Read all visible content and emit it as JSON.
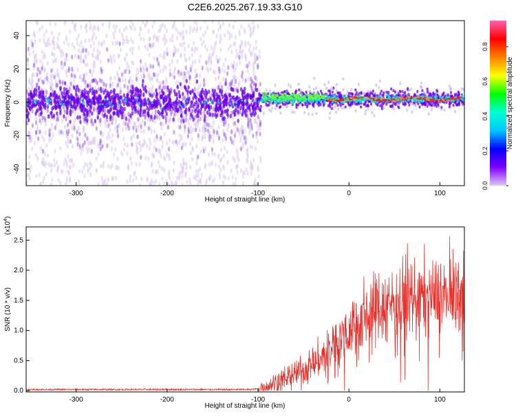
{
  "title": "C2E6.2025.267.19.33.G10",
  "colors": {
    "snr_line": "#e8302a",
    "spectro_low": "#d8c8f0",
    "spectro_mid": "#6a00e8",
    "spectro_high": "#00e8d0",
    "spectro_peak": "#e82020",
    "axis": "#000000"
  },
  "chart_data": [
    {
      "type": "heatmap",
      "title": "C2E6.2025.267.19.33.G10",
      "xlabel": "Height of straight line (km)",
      "ylabel": "Frequency (Hz)",
      "xlim": [
        -355,
        127
      ],
      "ylim": [
        -50,
        49
      ],
      "x_ticks": [
        -300,
        -200,
        -100,
        0,
        100
      ],
      "y_ticks": [
        -40,
        -20,
        0,
        20,
        40
      ],
      "noise_region_x": [
        -355,
        -97
      ],
      "signal_region_x": [
        -97,
        127
      ],
      "signal_center_hz": 2,
      "colorbar": {
        "label": "Normalized spectral amplitude",
        "range": [
          0.0,
          0.95
        ],
        "ticks": [
          0.0,
          0.2,
          0.4,
          0.6,
          0.8
        ],
        "colormap": [
          "#ff60b0",
          "#ff0000",
          "#ff8000",
          "#ffff00",
          "#00ff00",
          "#00ffd0",
          "#00c8ff",
          "#0000ff",
          "#8000ff",
          "#e0c8f8"
        ]
      }
    },
    {
      "type": "line",
      "xlabel": "Height of straight line (km)",
      "ylabel": "SNR (10 * v/v)",
      "y_scale_label": "(x10",
      "y_scale_exp": "4",
      "y_scale_close": ")",
      "xlim": [
        -355,
        127
      ],
      "ylim": [
        -0.02,
        2.72
      ],
      "x_ticks": [
        -300,
        -200,
        -100,
        0,
        100
      ],
      "y_ticks": [
        0.0,
        0.5,
        1.0,
        1.5,
        2.0,
        2.5
      ],
      "series": [
        {
          "name": "SNR",
          "x": [
            -355,
            -300,
            -250,
            -200,
            -150,
            -110,
            -100,
            -90,
            -80,
            -70,
            -60,
            -50,
            -40,
            -30,
            -20,
            -10,
            0,
            10,
            20,
            30,
            40,
            50,
            60,
            70,
            80,
            90,
            100,
            110,
            120,
            127
          ],
          "values": [
            0.02,
            0.02,
            0.02,
            0.02,
            0.02,
            0.02,
            0.03,
            0.08,
            0.15,
            0.22,
            0.28,
            0.35,
            0.45,
            0.55,
            0.7,
            0.88,
            1.02,
            1.18,
            1.3,
            1.38,
            1.45,
            1.5,
            1.52,
            1.56,
            1.55,
            1.58,
            1.6,
            1.62,
            1.6,
            1.58
          ]
        }
      ]
    }
  ]
}
